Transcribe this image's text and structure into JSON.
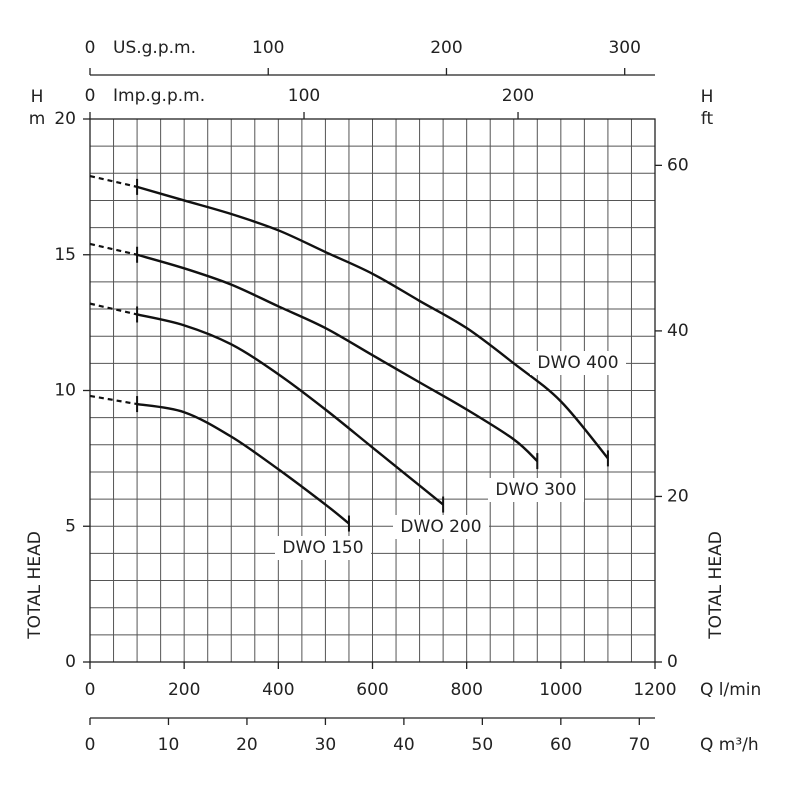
{
  "chart_data": {
    "type": "line",
    "x_label": "Q l/min",
    "x2_label": "Q m³/h",
    "y_label": "TOTAL HEAD",
    "y_unit_symbol": "H",
    "y_unit": "m",
    "y2_label": "TOTAL HEAD",
    "y2_unit_symbol": "H",
    "y2_unit": "ft",
    "top_label": "US.g.p.m.",
    "top2_label": "Imp.g.p.m.",
    "xlim": [
      0,
      1200
    ],
    "xticks": [
      0,
      200,
      400,
      600,
      800,
      1000,
      1200
    ],
    "x2lim": [
      0,
      72
    ],
    "x2ticks": [
      0,
      10,
      20,
      30,
      40,
      50,
      60,
      70
    ],
    "toplim": [
      0,
      317
    ],
    "topticks": [
      0,
      100,
      200,
      300
    ],
    "top2lim": [
      0,
      264
    ],
    "top2ticks": [
      0,
      100,
      200
    ],
    "ylim": [
      0,
      20
    ],
    "yticks": [
      0,
      5,
      10,
      15,
      20
    ],
    "y2lim": [
      0,
      65.6
    ],
    "y2ticks": [
      0,
      20,
      40,
      60
    ],
    "grid": true,
    "series": [
      {
        "name": "DWO 150",
        "color": "#111",
        "x": [
          0,
          100,
          200,
          300,
          400,
          500,
          550
        ],
        "values": [
          9.8,
          9.5,
          9.2,
          8.3,
          7.1,
          5.8,
          5.1
        ]
      },
      {
        "name": "DWO 200",
        "color": "#111",
        "x": [
          0,
          100,
          200,
          300,
          400,
          500,
          600,
          700,
          750
        ],
        "values": [
          13.2,
          12.8,
          12.4,
          11.7,
          10.6,
          9.3,
          7.9,
          6.5,
          5.8
        ]
      },
      {
        "name": "DWO 300",
        "color": "#111",
        "x": [
          0,
          100,
          200,
          300,
          400,
          500,
          600,
          700,
          800,
          900,
          950
        ],
        "values": [
          15.4,
          15.0,
          14.5,
          13.9,
          13.1,
          12.3,
          11.3,
          10.3,
          9.3,
          8.2,
          7.4
        ]
      },
      {
        "name": "DWO 400",
        "color": "#111",
        "x": [
          0,
          100,
          200,
          300,
          400,
          500,
          600,
          700,
          800,
          900,
          1000,
          1100
        ],
        "values": [
          17.9,
          17.5,
          17.0,
          16.5,
          15.9,
          15.1,
          14.3,
          13.3,
          12.3,
          11.0,
          9.6,
          7.5
        ]
      }
    ]
  }
}
